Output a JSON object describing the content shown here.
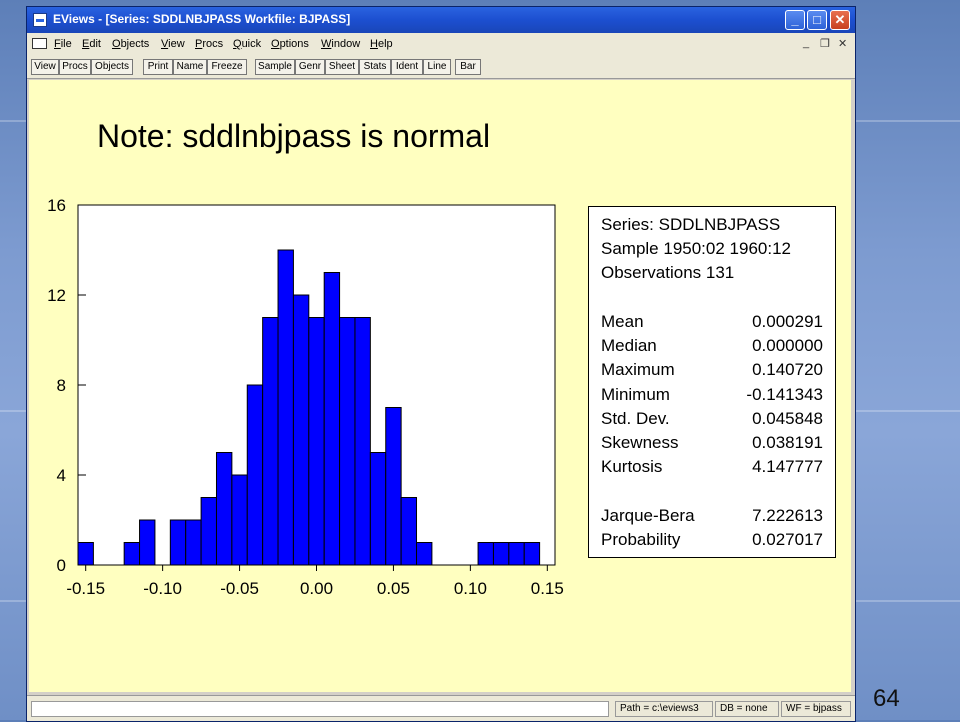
{
  "window": {
    "title": "EViews - [Series: SDDLNBJPASS    Workfile: BJPASS]",
    "controls": {
      "minimize": "_",
      "maximize": "□",
      "close": "✕"
    }
  },
  "menu": {
    "items": [
      "File",
      "Edit",
      "Objects",
      "View",
      "Procs",
      "Quick",
      "Options",
      "Window",
      "Help"
    ],
    "mdi_controls": {
      "minimize": "_",
      "restore": "❐",
      "close": "✕"
    }
  },
  "toolbar": {
    "buttons": [
      "View",
      "Procs",
      "Objects",
      "Print",
      "Name",
      "Freeze",
      "Sample",
      "Genr",
      "Sheet",
      "Stats",
      "Ident",
      "Line",
      "Bar"
    ]
  },
  "note": "Note: sddlnbjpass is normal",
  "chart_data": {
    "type": "bar",
    "x_ticks": [
      "-0.15",
      "-0.10",
      "-0.05",
      "0.00",
      "0.05",
      "0.10",
      "0.15"
    ],
    "y_ticks": [
      "0",
      "4",
      "8",
      "12",
      "16"
    ],
    "ylim": [
      0,
      16
    ],
    "xlim": [
      -0.155,
      0.155
    ],
    "bin_width": 0.01,
    "bin_starts": [
      -0.15,
      -0.14,
      -0.13,
      -0.12,
      -0.11,
      -0.1,
      -0.09,
      -0.08,
      -0.07,
      -0.06,
      -0.05,
      -0.04,
      -0.03,
      -0.02,
      -0.01,
      0.0,
      0.01,
      0.02,
      0.03,
      0.04,
      0.05,
      0.06,
      0.07,
      0.08,
      0.09,
      0.1,
      0.11,
      0.12,
      0.13,
      0.14
    ],
    "values": [
      1,
      0,
      0,
      1,
      2,
      0,
      2,
      2,
      3,
      5,
      4,
      8,
      11,
      14,
      12,
      11,
      13,
      11,
      11,
      5,
      7,
      3,
      1,
      0,
      0,
      0,
      1,
      1,
      1,
      1
    ],
    "bar_color": "#0000ff"
  },
  "stats": {
    "series": "Series: SDDLNBJPASS",
    "sample": "Sample 1950:02 1960:12",
    "observations": "Observations 131",
    "rows": [
      {
        "label": "Mean",
        "value": "0.000291"
      },
      {
        "label": "Median",
        "value": "0.000000"
      },
      {
        "label": "Maximum",
        "value": "0.140720"
      },
      {
        "label": "Minimum",
        "value": "-0.141343"
      },
      {
        "label": "Std. Dev.",
        "value": "0.045848"
      },
      {
        "label": "Skewness",
        "value": "0.038191"
      },
      {
        "label": "Kurtosis",
        "value": "4.147777"
      }
    ],
    "jb_rows": [
      {
        "label": "Jarque-Bera",
        "value": "7.222613"
      },
      {
        "label": "Probability",
        "value": "0.027017"
      }
    ]
  },
  "status": {
    "path": "Path = c:\\eviews3",
    "db": "DB = none",
    "wf": "WF = bjpass"
  },
  "slide_number": "64"
}
